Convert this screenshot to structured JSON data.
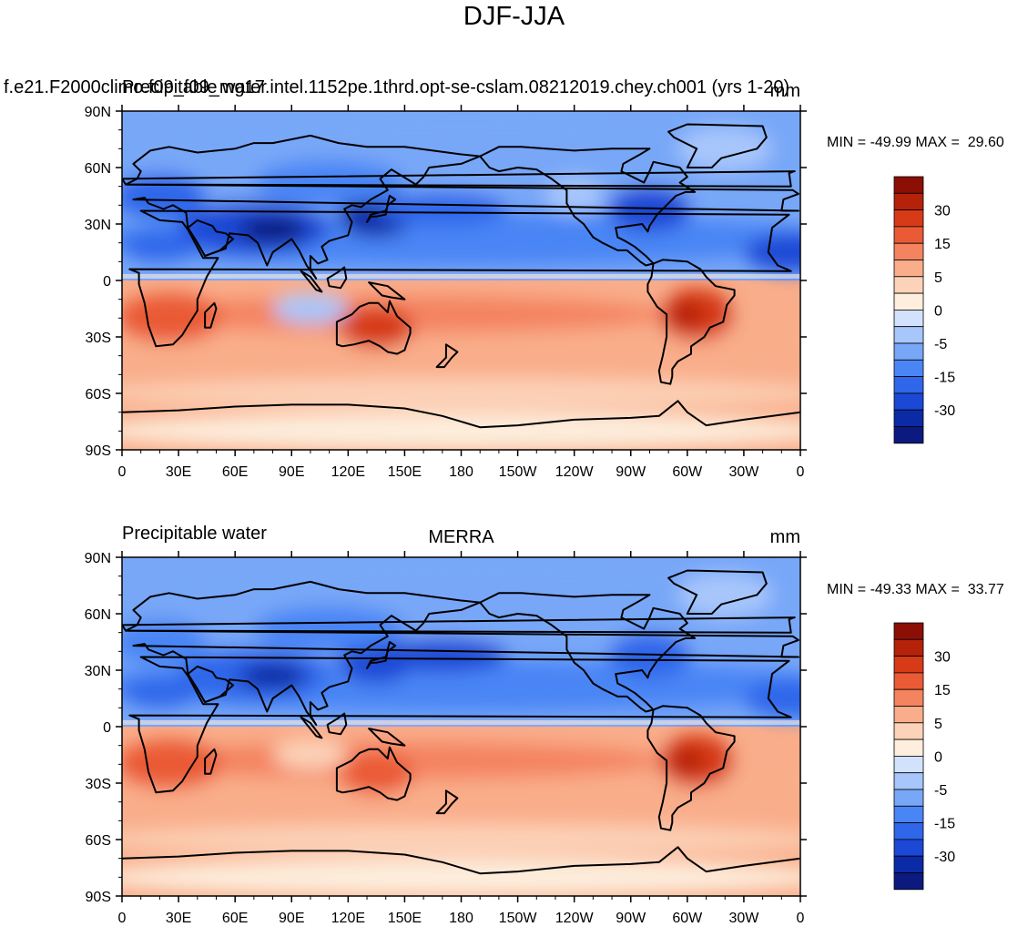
{
  "title": "DJF-JJA",
  "colors": {
    "levels": [
      "#0c1a7f",
      "#0a2aa6",
      "#1c48d6",
      "#2f66ea",
      "#4a85f5",
      "#78a7f8",
      "#a7c6fb",
      "#d2e2fd",
      "#fdeedd",
      "#fcd2b8",
      "#f9ad8a",
      "#f48360",
      "#ea5a34",
      "#d73a17",
      "#b5220a",
      "#8c0f05"
    ],
    "ocean_blue_high": "#78a7f8",
    "land_outline": "#000000"
  },
  "chart_data": [
    {
      "type": "heatmap",
      "left_title": "f.e21.F2000climo.f09_f09_mg17.intel.1152pe.1thrd.opt-se-cslam.08212019.chey.ch001 (yrs 1-20)",
      "left_subtitle": "Precipitable water",
      "center_title": "",
      "right_title": "mm",
      "stats": "MIN = -49.99 MAX =  29.60",
      "x_ticks": [
        "0",
        "30E",
        "60E",
        "90E",
        "120E",
        "150E",
        "180",
        "150W",
        "120W",
        "90W",
        "60W",
        "30W",
        "0"
      ],
      "y_ticks": [
        "90N",
        "60N",
        "30N",
        "0",
        "30S",
        "60S",
        "90S"
      ],
      "colorbar_labels": [
        "30",
        "15",
        "5",
        "0",
        "-5",
        "-15",
        "-30"
      ],
      "xlim": [
        0,
        360
      ],
      "ylim": [
        -90,
        90
      ]
    },
    {
      "type": "heatmap",
      "left_title": "Precipitable water",
      "center_title": "MERRA",
      "right_title": "mm",
      "stats": "MIN = -49.33 MAX =  33.77",
      "x_ticks": [
        "0",
        "30E",
        "60E",
        "90E",
        "120E",
        "150E",
        "180",
        "150W",
        "120W",
        "90W",
        "60W",
        "30W",
        "0"
      ],
      "y_ticks": [
        "90N",
        "60N",
        "30N",
        "0",
        "30S",
        "60S",
        "90S"
      ],
      "colorbar_labels": [
        "30",
        "15",
        "5",
        "0",
        "-5",
        "-15",
        "-30"
      ],
      "xlim": [
        0,
        360
      ],
      "ylim": [
        -90,
        90
      ]
    }
  ]
}
